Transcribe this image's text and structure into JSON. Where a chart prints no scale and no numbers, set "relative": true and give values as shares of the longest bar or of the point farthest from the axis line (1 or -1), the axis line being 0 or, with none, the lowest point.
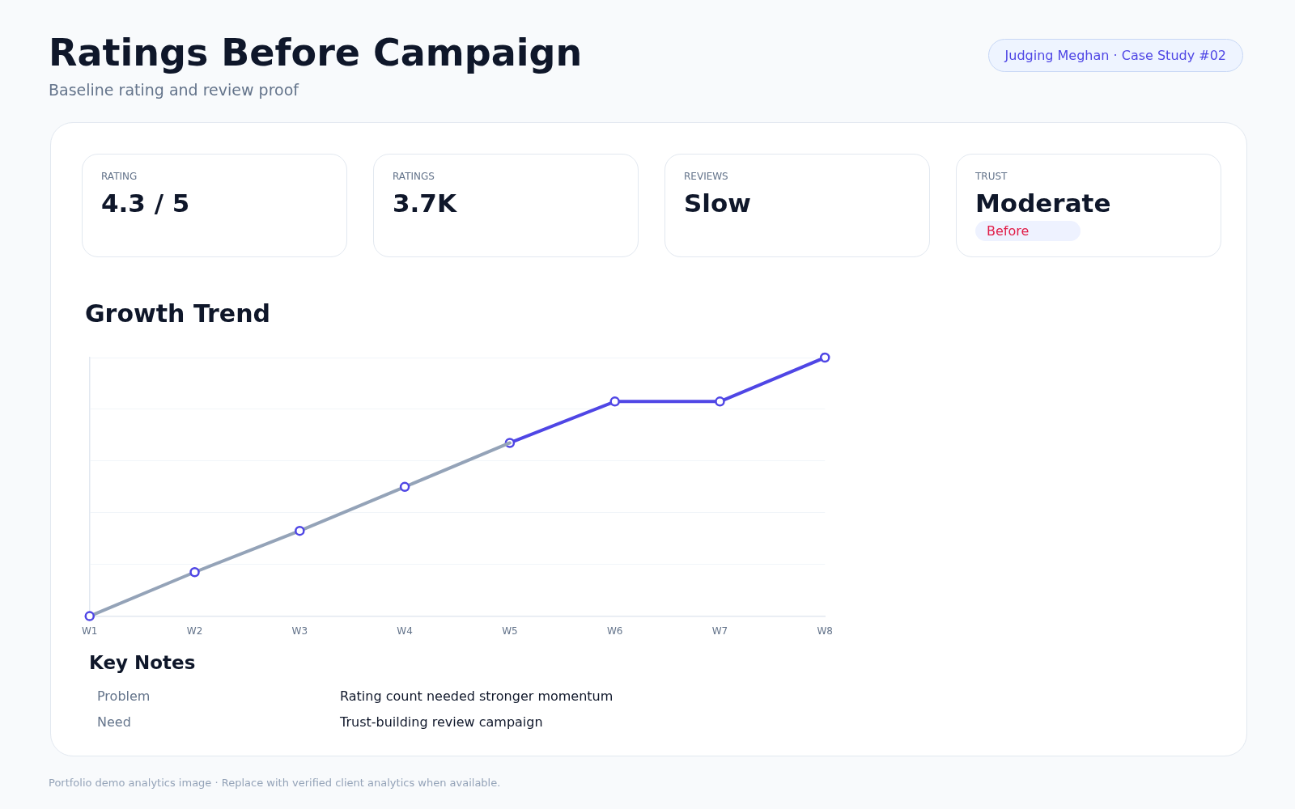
{
  "chart_data": [
    {
      "type": "other",
      "title": "Ratings Before Campaign",
      "subtitle": "Baseline rating and review proof",
      "annotations": [
        "Judging Meghan · Case Study #02",
        "RATING",
        "4.3 / 5",
        "RATINGS",
        "3.7K",
        "REVIEWS",
        "Slow",
        "TRUST",
        "Moderate",
        "Before"
      ]
    },
    {
      "type": "line",
      "title": "Growth Trend",
      "relative": true,
      "categories": [
        "W1",
        "W2",
        "W3",
        "W4",
        "W5",
        "W6",
        "W7",
        "W8"
      ],
      "grid": "y",
      "legend": false,
      "tick_labels": "x",
      "series": [
        {
          "type": "line",
          "color": "#94a3b8",
          "marker": "none",
          "values": [
            0,
            0.17,
            0.33,
            0.5,
            0.67,
            null,
            null,
            null
          ]
        },
        {
          "type": "line",
          "color": "#4f46e5",
          "marker": "circle",
          "values": [
            null,
            null,
            null,
            null,
            0.67,
            0.83,
            0.83,
            1
          ]
        },
        {
          "type": "scatter",
          "color": "#4f46e5",
          "marker": "circle",
          "values": [
            0,
            0.17,
            0.33,
            0.5,
            null,
            null,
            null,
            null
          ]
        }
      ]
    },
    {
      "type": "other",
      "title": "Key Notes",
      "annotations": [
        "Problem",
        "Rating count needed stronger momentum",
        "Need",
        "Trust-building review campaign",
        "Portfolio demo analytics image · Replace with verified client analytics when available."
      ]
    }
  ]
}
